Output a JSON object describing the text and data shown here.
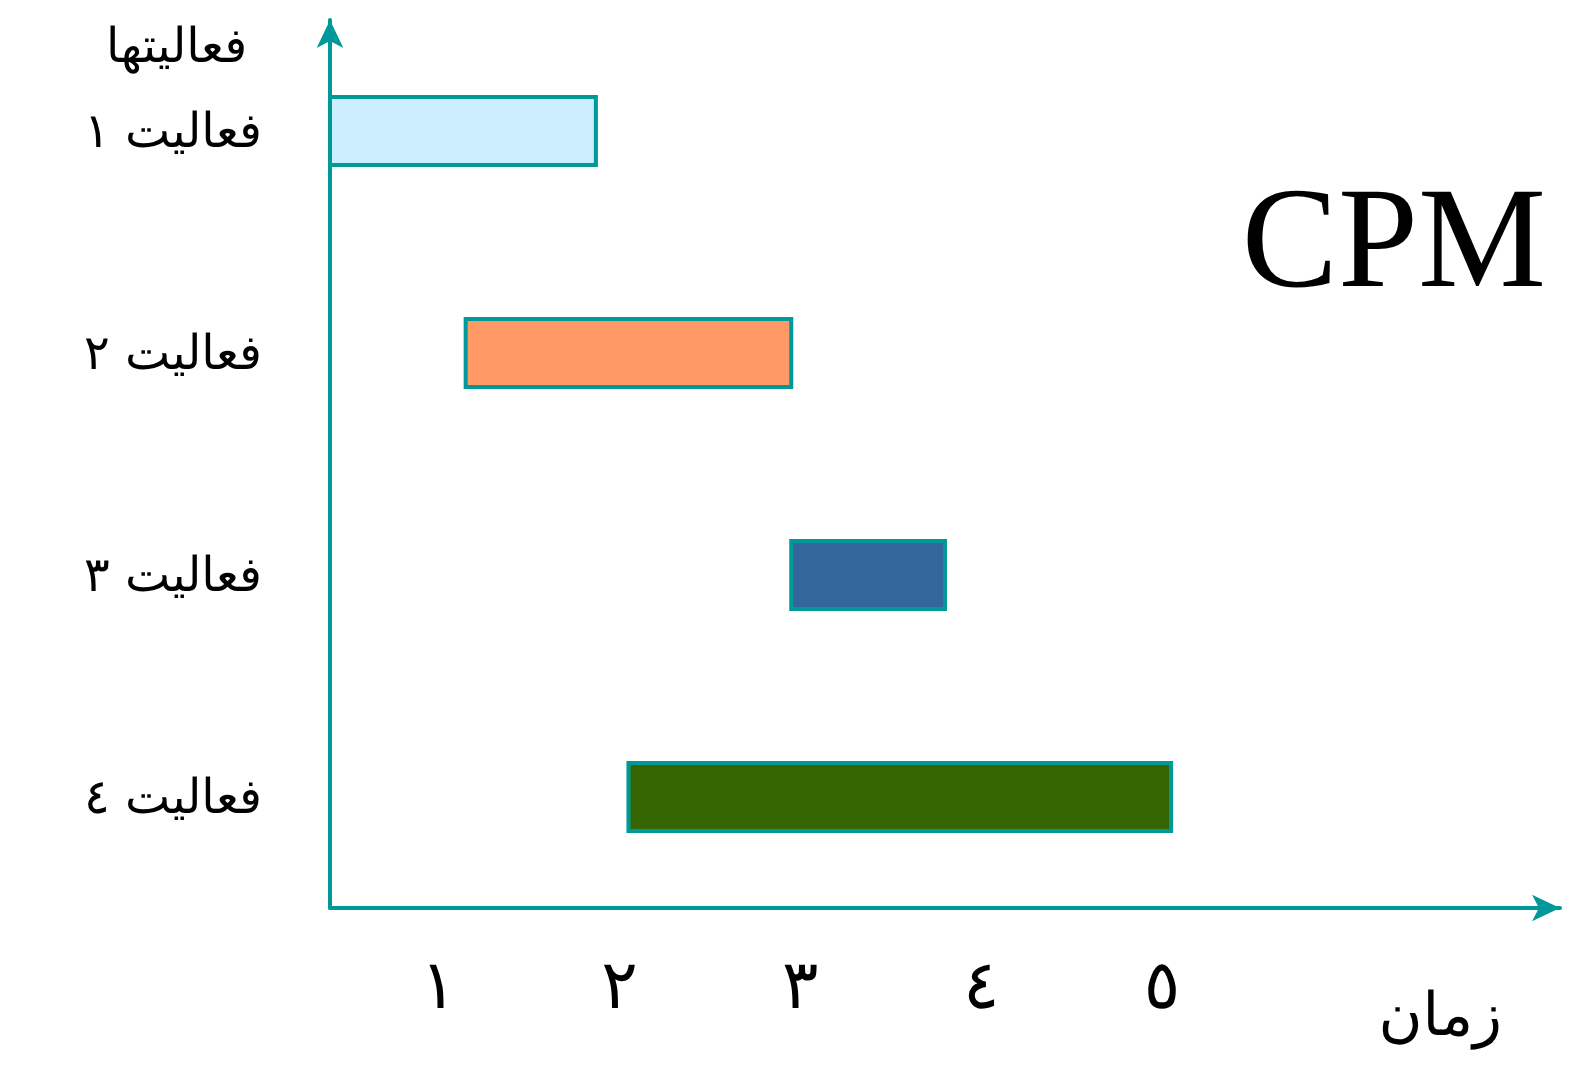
{
  "chart_data": {
    "type": "bar",
    "orientation": "horizontal",
    "title": "CPM",
    "xlabel": "زمان",
    "ylabel": "فعالیتها",
    "categories": [
      "فعالیت ١",
      "فعالیت ٢",
      "فعالیت ٣",
      "فعالیت ٤"
    ],
    "base": [
      0.4,
      1.15,
      2.95,
      2.05
    ],
    "values": [
      1.47,
      1.8,
      0.85,
      3.0
    ],
    "colors": [
      "#cceeff",
      "#ff9966",
      "#336699",
      "#336600"
    ],
    "xlim": [
      0.4,
      7.2
    ],
    "xticks": [
      {
        "value": 1,
        "label": "١"
      },
      {
        "value": 2,
        "label": "٢"
      },
      {
        "value": 3,
        "label": "٣"
      },
      {
        "value": 4,
        "label": "٤"
      },
      {
        "value": 5,
        "label": "٥"
      }
    ],
    "stacked": false
  }
}
